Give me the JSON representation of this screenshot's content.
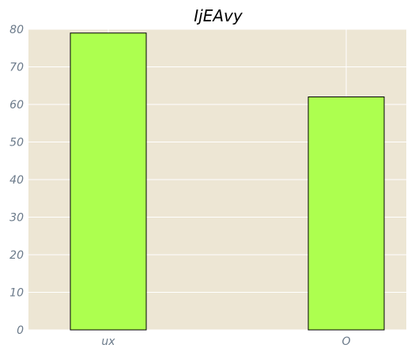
{
  "chart_data": {
    "type": "bar",
    "title": "IjEAvy",
    "categories": [
      "ux",
      "O"
    ],
    "values": [
      79,
      62
    ],
    "xlabel": "",
    "ylabel": "",
    "ylim": [
      0,
      80
    ],
    "yticks": [
      0,
      10,
      20,
      30,
      40,
      50,
      60,
      70,
      80
    ],
    "grid": true,
    "colors": {
      "bar_fill": "#adff4f",
      "bar_stroke": "#000000",
      "plot_bg": "#ede6d4",
      "grid": "#ffffff",
      "tick_text": "#6b7a8a",
      "title_text": "#000000"
    }
  }
}
